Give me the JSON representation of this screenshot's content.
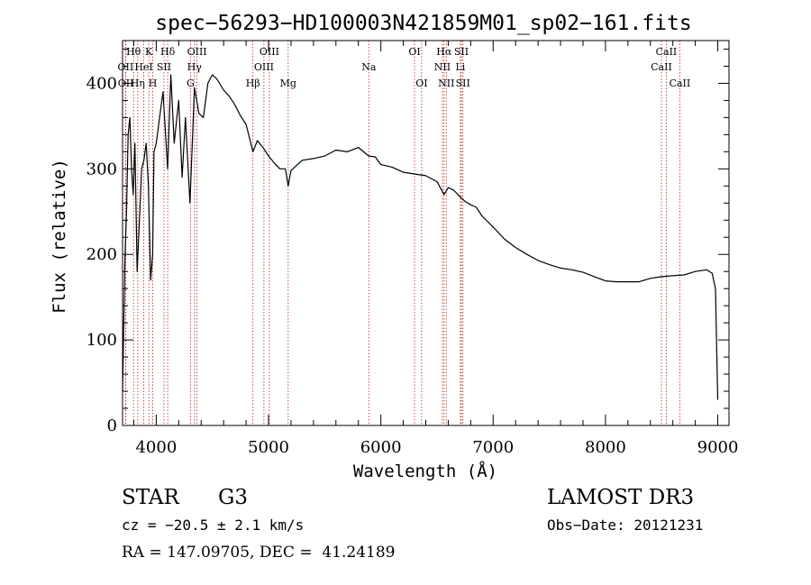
{
  "chart_data": {
    "type": "line",
    "title": "spec−56293−HD100003N421859M01_sp02−161.fits",
    "xlabel": "Wavelength (Å)",
    "ylabel": "Flux (relative)",
    "xlim": [
      3700,
      9100
    ],
    "ylim": [
      0,
      450
    ],
    "xticks": [
      4000,
      5000,
      6000,
      7000,
      8000,
      9000
    ],
    "yticks": [
      0,
      100,
      200,
      300,
      400
    ],
    "series": [
      {
        "name": "flux",
        "color": "#000000",
        "x": [
          3700,
          3710,
          3720,
          3735,
          3750,
          3765,
          3780,
          3795,
          3810,
          3830,
          3850,
          3870,
          3890,
          3910,
          3930,
          3950,
          3968,
          3980,
          4000,
          4030,
          4060,
          4101,
          4130,
          4160,
          4200,
          4230,
          4260,
          4300,
          4340,
          4380,
          4420,
          4460,
          4500,
          4540,
          4600,
          4650,
          4700,
          4750,
          4800,
          4861,
          4900,
          4950,
          5000,
          5050,
          5100,
          5150,
          5175,
          5200,
          5300,
          5400,
          5500,
          5600,
          5700,
          5800,
          5893,
          5950,
          6000,
          6100,
          6200,
          6300,
          6400,
          6500,
          6563,
          6600,
          6650,
          6700,
          6750,
          6800,
          6850,
          6900,
          7000,
          7100,
          7200,
          7300,
          7400,
          7500,
          7600,
          7700,
          7800,
          7900,
          8000,
          8100,
          8200,
          8300,
          8400,
          8500,
          8600,
          8700,
          8800,
          8900,
          8950,
          8980,
          9000
        ],
        "values": [
          40,
          110,
          190,
          250,
          340,
          360,
          300,
          270,
          330,
          180,
          240,
          300,
          310,
          330,
          280,
          170,
          200,
          320,
          330,
          360,
          390,
          300,
          410,
          330,
          380,
          290,
          360,
          260,
          395,
          365,
          360,
          400,
          410,
          405,
          392,
          385,
          375,
          362,
          352,
          320,
          333,
          325,
          315,
          307,
          300,
          300,
          280,
          298,
          310,
          312,
          315,
          322,
          320,
          325,
          315,
          314,
          305,
          302,
          296,
          294,
          292,
          285,
          270,
          278,
          275,
          268,
          262,
          258,
          255,
          245,
          232,
          218,
          208,
          200,
          193,
          188,
          184,
          182,
          179,
          174,
          169,
          168,
          168,
          168,
          172,
          174,
          175,
          176,
          180,
          182,
          178,
          160,
          30
        ]
      }
    ],
    "lines": [
      {
        "label": "Hθ",
        "x": 3798,
        "row": 1
      },
      {
        "label": "OII",
        "x": 3727,
        "row": 2
      },
      {
        "label": "OII",
        "x": 3729,
        "row": 3
      },
      {
        "label": "Hη",
        "x": 3835,
        "row": 3
      },
      {
        "label": "HeI",
        "x": 3889,
        "row": 2
      },
      {
        "label": "K",
        "x": 3934,
        "row": 1
      },
      {
        "label": "SII",
        "x": 4069,
        "row": 2
      },
      {
        "label": "H",
        "x": 3969,
        "row": 3
      },
      {
        "label": "Hδ",
        "x": 4102,
        "row": 1
      },
      {
        "label": "OIII",
        "x": 4363,
        "row": 1
      },
      {
        "label": "Hγ",
        "x": 4340,
        "row": 2
      },
      {
        "label": "G",
        "x": 4305,
        "row": 3
      },
      {
        "label": "Hβ",
        "x": 4861,
        "row": 3
      },
      {
        "label": "OIII",
        "x": 4959,
        "row": 2
      },
      {
        "label": "OIII",
        "x": 5007,
        "row": 1
      },
      {
        "label": "Mg",
        "x": 5175,
        "row": 3
      },
      {
        "label": "Na",
        "x": 5893,
        "row": 2
      },
      {
        "label": "OI",
        "x": 6300,
        "row": 1
      },
      {
        "label": "OI",
        "x": 6363,
        "row": 3
      },
      {
        "label": "Hα",
        "x": 6563,
        "row": 1
      },
      {
        "label": "NII",
        "x": 6548,
        "row": 2
      },
      {
        "label": "NII",
        "x": 6583,
        "row": 3
      },
      {
        "label": "SII",
        "x": 6717,
        "row": 1
      },
      {
        "label": "Li",
        "x": 6708,
        "row": 2
      },
      {
        "label": "SII",
        "x": 6731,
        "row": 3
      },
      {
        "label": "CaII",
        "x": 8498,
        "row": 2
      },
      {
        "label": "CaII",
        "x": 8542,
        "row": 1
      },
      {
        "label": "CaII",
        "x": 8662,
        "row": 3
      }
    ],
    "line_color": "#b22222"
  },
  "info": {
    "class": "STAR",
    "subclass": "G3",
    "survey": "LAMOST DR3",
    "cz": "cz = −20.5 ± 2.1 km/s",
    "obsdate": "Obs−Date: 20121231",
    "coords": "RA = 147.09705, DEC =  41.24189"
  }
}
